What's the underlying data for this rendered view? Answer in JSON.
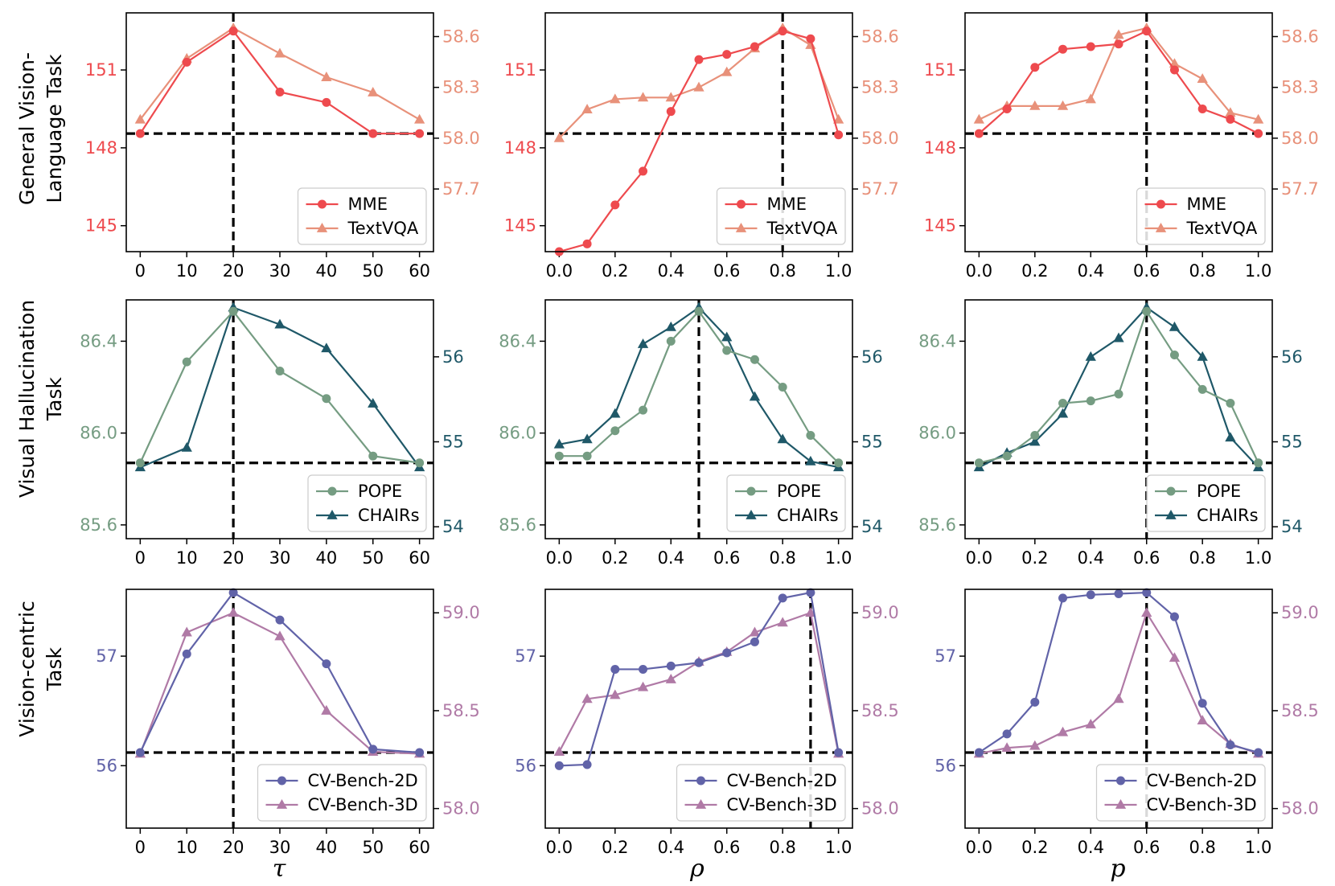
{
  "row_labels": [
    [
      "General Vision-",
      "Language Task"
    ],
    [
      "Visual Hallucination",
      "Task"
    ],
    [
      "Vision-centric",
      "Task"
    ]
  ],
  "x_labels": [
    "τ",
    "ρ",
    "p"
  ],
  "chart_data": [
    {
      "type": "line",
      "row": 0,
      "col": 0,
      "x_symbol": "τ",
      "x": [
        0,
        10,
        20,
        30,
        40,
        50,
        60
      ],
      "xlim": [
        -3,
        63
      ],
      "x_ticks": [
        0,
        10,
        20,
        30,
        40,
        50,
        60
      ],
      "x_tick_labels": [
        "0",
        "10",
        "20",
        "30",
        "40",
        "50",
        "60"
      ],
      "left_axis": {
        "ylim": [
          144.0,
          153.2
        ],
        "ticks": [
          145,
          148,
          151
        ],
        "tick_labels": [
          "145",
          "148",
          "151"
        ],
        "color": "#ee4a4e"
      },
      "right_axis": {
        "ylim": [
          57.33,
          58.74
        ],
        "ticks": [
          57.7,
          58.0,
          58.3,
          58.6
        ],
        "tick_labels": [
          "57.7",
          "58.0",
          "58.3",
          "58.6"
        ],
        "color": "#e8917a"
      },
      "series": [
        {
          "name": "MME",
          "axis": "left",
          "marker": "circle",
          "color": "#ee4a4e",
          "values": [
            148.55,
            151.3,
            152.5,
            150.15,
            149.75,
            148.55,
            148.55
          ]
        },
        {
          "name": "TextVQA",
          "axis": "right",
          "marker": "triangle",
          "color": "#e8917a",
          "values": [
            58.11,
            58.47,
            58.65,
            58.5,
            58.36,
            58.27,
            58.11
          ]
        }
      ],
      "hline": {
        "axis": "left",
        "value": 148.55
      },
      "vline": {
        "x": 20
      },
      "legend": {
        "position": "lower-right",
        "entries": [
          "MME",
          "TextVQA"
        ]
      }
    },
    {
      "type": "line",
      "row": 0,
      "col": 1,
      "x_symbol": "ρ",
      "x": [
        0.0,
        0.1,
        0.2,
        0.3,
        0.4,
        0.5,
        0.6,
        0.7,
        0.8,
        0.9,
        1.0
      ],
      "xlim": [
        -0.05,
        1.05
      ],
      "x_ticks": [
        0.0,
        0.2,
        0.4,
        0.6,
        0.8,
        1.0
      ],
      "x_tick_labels": [
        "0.0",
        "0.2",
        "0.4",
        "0.6",
        "0.8",
        "1.0"
      ],
      "left_axis": {
        "ylim": [
          144.0,
          153.2
        ],
        "ticks": [
          145,
          148,
          151
        ],
        "tick_labels": [
          "145",
          "148",
          "151"
        ],
        "color": "#ee4a4e"
      },
      "right_axis": {
        "ylim": [
          57.33,
          58.74
        ],
        "ticks": [
          57.7,
          58.0,
          58.3,
          58.6
        ],
        "tick_labels": [
          "57.7",
          "58.0",
          "58.3",
          "58.6"
        ],
        "color": "#e8917a"
      },
      "series": [
        {
          "name": "MME",
          "axis": "left",
          "marker": "circle",
          "color": "#ee4a4e",
          "values": [
            144.0,
            144.3,
            145.8,
            147.1,
            149.4,
            151.4,
            151.6,
            151.9,
            152.5,
            152.2,
            148.5
          ]
        },
        {
          "name": "TextVQA",
          "axis": "right",
          "marker": "triangle",
          "color": "#e8917a",
          "values": [
            58.0,
            58.17,
            58.23,
            58.24,
            58.24,
            58.3,
            58.39,
            58.53,
            58.65,
            58.55,
            58.11
          ]
        }
      ],
      "hline": {
        "axis": "left",
        "value": 148.55
      },
      "vline": {
        "x": 0.8
      },
      "legend": {
        "position": "lower-right",
        "entries": [
          "MME",
          "TextVQA"
        ]
      }
    },
    {
      "type": "line",
      "row": 0,
      "col": 2,
      "x_symbol": "p",
      "x": [
        0.0,
        0.1,
        0.2,
        0.3,
        0.4,
        0.5,
        0.6,
        0.7,
        0.8,
        0.9,
        1.0
      ],
      "xlim": [
        -0.05,
        1.05
      ],
      "x_ticks": [
        0.0,
        0.2,
        0.4,
        0.6,
        0.8,
        1.0
      ],
      "x_tick_labels": [
        "0.0",
        "0.2",
        "0.4",
        "0.6",
        "0.8",
        "1.0"
      ],
      "left_axis": {
        "ylim": [
          144.0,
          153.2
        ],
        "ticks": [
          145,
          148,
          151
        ],
        "tick_labels": [
          "145",
          "148",
          "151"
        ],
        "color": "#ee4a4e"
      },
      "right_axis": {
        "ylim": [
          57.33,
          58.74
        ],
        "ticks": [
          57.7,
          58.0,
          58.3,
          58.6
        ],
        "tick_labels": [
          "57.7",
          "58.0",
          "58.3",
          "58.6"
        ],
        "color": "#e8917a"
      },
      "series": [
        {
          "name": "MME",
          "axis": "left",
          "marker": "circle",
          "color": "#ee4a4e",
          "values": [
            148.55,
            149.5,
            151.1,
            151.8,
            151.9,
            152.0,
            152.5,
            151.0,
            149.5,
            149.1,
            148.55
          ]
        },
        {
          "name": "TextVQA",
          "axis": "right",
          "marker": "triangle",
          "color": "#e8917a",
          "values": [
            58.11,
            58.19,
            58.19,
            58.19,
            58.23,
            58.61,
            58.65,
            58.44,
            58.35,
            58.15,
            58.11
          ]
        }
      ],
      "hline": {
        "axis": "left",
        "value": 148.55
      },
      "vline": {
        "x": 0.6
      },
      "legend": {
        "position": "lower-right",
        "entries": [
          "MME",
          "TextVQA"
        ]
      }
    },
    {
      "type": "line",
      "row": 1,
      "col": 0,
      "x_symbol": "τ",
      "x": [
        0,
        10,
        20,
        30,
        40,
        50,
        60
      ],
      "xlim": [
        -3,
        63
      ],
      "x_ticks": [
        0,
        10,
        20,
        30,
        40,
        50,
        60
      ],
      "x_tick_labels": [
        "0",
        "10",
        "20",
        "30",
        "40",
        "50",
        "60"
      ],
      "left_axis": {
        "ylim": [
          85.54,
          86.58
        ],
        "ticks": [
          85.6,
          86.0,
          86.4
        ],
        "tick_labels": [
          "85.6",
          "86.0",
          "86.4"
        ],
        "color": "#759c82"
      },
      "right_axis": {
        "ylim": [
          53.86,
          56.67
        ],
        "ticks": [
          54,
          55,
          56
        ],
        "tick_labels": [
          "54",
          "55",
          "56"
        ],
        "color": "#1f5868"
      },
      "series": [
        {
          "name": "POPE",
          "axis": "left",
          "marker": "circle",
          "color": "#759c82",
          "values": [
            85.87,
            86.31,
            86.53,
            86.27,
            86.15,
            85.9,
            85.87
          ]
        },
        {
          "name": "CHAIRs",
          "axis": "right",
          "marker": "triangle",
          "color": "#1f5868",
          "values": [
            54.7,
            54.93,
            56.58,
            56.38,
            56.1,
            55.45,
            54.7
          ]
        }
      ],
      "hline": {
        "axis": "left",
        "value": 85.87
      },
      "vline": {
        "x": 20
      },
      "legend": {
        "position": "lower-right",
        "entries": [
          "POPE",
          "CHAIRs"
        ]
      }
    },
    {
      "type": "line",
      "row": 1,
      "col": 1,
      "x_symbol": "ρ",
      "x": [
        0.0,
        0.1,
        0.2,
        0.3,
        0.4,
        0.5,
        0.6,
        0.7,
        0.8,
        0.9,
        1.0
      ],
      "xlim": [
        -0.05,
        1.05
      ],
      "x_ticks": [
        0.0,
        0.2,
        0.4,
        0.6,
        0.8,
        1.0
      ],
      "x_tick_labels": [
        "0.0",
        "0.2",
        "0.4",
        "0.6",
        "0.8",
        "1.0"
      ],
      "left_axis": {
        "ylim": [
          85.54,
          86.58
        ],
        "ticks": [
          85.6,
          86.0,
          86.4
        ],
        "tick_labels": [
          "85.6",
          "86.0",
          "86.4"
        ],
        "color": "#759c82"
      },
      "right_axis": {
        "ylim": [
          53.86,
          56.67
        ],
        "ticks": [
          54,
          55,
          56
        ],
        "tick_labels": [
          "54",
          "55",
          "56"
        ],
        "color": "#1f5868"
      },
      "series": [
        {
          "name": "POPE",
          "axis": "left",
          "marker": "circle",
          "color": "#759c82",
          "values": [
            85.9,
            85.9,
            86.01,
            86.1,
            86.4,
            86.53,
            86.36,
            86.32,
            86.2,
            85.99,
            85.87
          ]
        },
        {
          "name": "CHAIRs",
          "axis": "right",
          "marker": "triangle",
          "color": "#1f5868",
          "values": [
            54.97,
            55.03,
            55.33,
            56.15,
            56.35,
            56.58,
            56.23,
            55.53,
            55.03,
            54.77,
            54.7
          ]
        }
      ],
      "hline": {
        "axis": "left",
        "value": 85.87
      },
      "vline": {
        "x": 0.5
      },
      "legend": {
        "position": "lower-right",
        "entries": [
          "POPE",
          "CHAIRs"
        ]
      }
    },
    {
      "type": "line",
      "row": 1,
      "col": 2,
      "x_symbol": "p",
      "x": [
        0.0,
        0.1,
        0.2,
        0.3,
        0.4,
        0.5,
        0.6,
        0.7,
        0.8,
        0.9,
        1.0
      ],
      "xlim": [
        -0.05,
        1.05
      ],
      "x_ticks": [
        0.0,
        0.2,
        0.4,
        0.6,
        0.8,
        1.0
      ],
      "x_tick_labels": [
        "0.0",
        "0.2",
        "0.4",
        "0.6",
        "0.8",
        "1.0"
      ],
      "left_axis": {
        "ylim": [
          85.54,
          86.58
        ],
        "ticks": [
          85.6,
          86.0,
          86.4
        ],
        "tick_labels": [
          "85.6",
          "86.0",
          "86.4"
        ],
        "color": "#759c82"
      },
      "right_axis": {
        "ylim": [
          53.86,
          56.67
        ],
        "ticks": [
          54,
          55,
          56
        ],
        "tick_labels": [
          "54",
          "55",
          "56"
        ],
        "color": "#1f5868"
      },
      "series": [
        {
          "name": "POPE",
          "axis": "left",
          "marker": "circle",
          "color": "#759c82",
          "values": [
            85.87,
            85.9,
            85.99,
            86.13,
            86.14,
            86.17,
            86.53,
            86.34,
            86.19,
            86.13,
            85.87
          ]
        },
        {
          "name": "CHAIRs",
          "axis": "right",
          "marker": "triangle",
          "color": "#1f5868",
          "values": [
            54.7,
            54.87,
            55.0,
            55.33,
            56.0,
            56.22,
            56.58,
            56.35,
            56.0,
            55.05,
            54.7
          ]
        }
      ],
      "hline": {
        "axis": "left",
        "value": 85.87
      },
      "vline": {
        "x": 0.6
      },
      "legend": {
        "position": "lower-right",
        "entries": [
          "POPE",
          "CHAIRs"
        ]
      }
    },
    {
      "type": "line",
      "row": 2,
      "col": 0,
      "x_symbol": "τ",
      "x": [
        0,
        10,
        20,
        30,
        40,
        50,
        60
      ],
      "xlim": [
        -3,
        63
      ],
      "x_ticks": [
        0,
        10,
        20,
        30,
        40,
        50,
        60
      ],
      "x_tick_labels": [
        "0",
        "10",
        "20",
        "30",
        "40",
        "50",
        "60"
      ],
      "left_axis": {
        "ylim": [
          55.43,
          57.61
        ],
        "ticks": [
          56,
          57
        ],
        "tick_labels": [
          "56",
          "57"
        ],
        "color": "#6163a8"
      },
      "right_axis": {
        "ylim": [
          57.9,
          59.12
        ],
        "ticks": [
          58.0,
          58.5,
          59.0
        ],
        "tick_labels": [
          "58.0",
          "58.5",
          "59.0"
        ],
        "color": "#b07aa6"
      },
      "series": [
        {
          "name": "CV-Bench-2D",
          "axis": "left",
          "marker": "circle",
          "color": "#6163a8",
          "values": [
            56.12,
            57.02,
            57.58,
            57.33,
            56.93,
            56.15,
            56.12
          ]
        },
        {
          "name": "CV-Bench-3D",
          "axis": "right",
          "marker": "triangle",
          "color": "#b07aa6",
          "values": [
            58.28,
            58.9,
            59.0,
            58.88,
            58.5,
            58.29,
            58.28
          ]
        }
      ],
      "hline": {
        "axis": "left",
        "value": 56.12
      },
      "vline": {
        "x": 20
      },
      "legend": {
        "position": "lower-right",
        "entries": [
          "CV-Bench-2D",
          "CV-Bench-3D"
        ]
      }
    },
    {
      "type": "line",
      "row": 2,
      "col": 1,
      "x_symbol": "ρ",
      "x": [
        0.0,
        0.1,
        0.2,
        0.3,
        0.4,
        0.5,
        0.6,
        0.7,
        0.8,
        0.9,
        1.0
      ],
      "xlim": [
        -0.05,
        1.05
      ],
      "x_ticks": [
        0.0,
        0.2,
        0.4,
        0.6,
        0.8,
        1.0
      ],
      "x_tick_labels": [
        "0.0",
        "0.2",
        "0.4",
        "0.6",
        "0.8",
        "1.0"
      ],
      "left_axis": {
        "ylim": [
          55.43,
          57.61
        ],
        "ticks": [
          56,
          57
        ],
        "tick_labels": [
          "56",
          "57"
        ],
        "color": "#6163a8"
      },
      "right_axis": {
        "ylim": [
          57.9,
          59.12
        ],
        "ticks": [
          58.0,
          58.5,
          59.0
        ],
        "tick_labels": [
          "58.0",
          "58.5",
          "59.0"
        ],
        "color": "#b07aa6"
      },
      "series": [
        {
          "name": "CV-Bench-2D",
          "axis": "left",
          "marker": "circle",
          "color": "#6163a8",
          "values": [
            56.0,
            56.01,
            56.88,
            56.88,
            56.91,
            56.94,
            57.03,
            57.13,
            57.53,
            57.58,
            56.12
          ]
        },
        {
          "name": "CV-Bench-3D",
          "axis": "right",
          "marker": "triangle",
          "color": "#b07aa6",
          "values": [
            58.29,
            58.56,
            58.58,
            58.62,
            58.66,
            58.75,
            58.8,
            58.9,
            58.95,
            59.0,
            58.28
          ]
        }
      ],
      "hline": {
        "axis": "left",
        "value": 56.12
      },
      "vline": {
        "x": 0.9
      },
      "legend": {
        "position": "lower-right",
        "entries": [
          "CV-Bench-2D",
          "CV-Bench-3D"
        ]
      }
    },
    {
      "type": "line",
      "row": 2,
      "col": 2,
      "x_symbol": "p",
      "x": [
        0.0,
        0.1,
        0.2,
        0.3,
        0.4,
        0.5,
        0.6,
        0.7,
        0.8,
        0.9,
        1.0
      ],
      "xlim": [
        -0.05,
        1.05
      ],
      "x_ticks": [
        0.0,
        0.2,
        0.4,
        0.6,
        0.8,
        1.0
      ],
      "x_tick_labels": [
        "0.0",
        "0.2",
        "0.4",
        "0.6",
        "0.8",
        "1.0"
      ],
      "left_axis": {
        "ylim": [
          55.43,
          57.61
        ],
        "ticks": [
          56,
          57
        ],
        "tick_labels": [
          "56",
          "57"
        ],
        "color": "#6163a8"
      },
      "right_axis": {
        "ylim": [
          57.9,
          59.12
        ],
        "ticks": [
          58.0,
          58.5,
          59.0
        ],
        "tick_labels": [
          "58.0",
          "58.5",
          "59.0"
        ],
        "color": "#b07aa6"
      },
      "series": [
        {
          "name": "CV-Bench-2D",
          "axis": "left",
          "marker": "circle",
          "color": "#6163a8",
          "values": [
            56.12,
            56.29,
            56.58,
            57.53,
            57.56,
            57.57,
            57.58,
            57.36,
            56.57,
            56.19,
            56.12
          ]
        },
        {
          "name": "CV-Bench-3D",
          "axis": "right",
          "marker": "triangle",
          "color": "#b07aa6",
          "values": [
            58.28,
            58.31,
            58.32,
            58.39,
            58.43,
            58.56,
            59.0,
            58.77,
            58.45,
            58.33,
            58.28
          ]
        }
      ],
      "hline": {
        "axis": "left",
        "value": 56.12
      },
      "vline": {
        "x": 0.6
      },
      "legend": {
        "position": "lower-right",
        "entries": [
          "CV-Bench-2D",
          "CV-Bench-3D"
        ]
      }
    }
  ]
}
